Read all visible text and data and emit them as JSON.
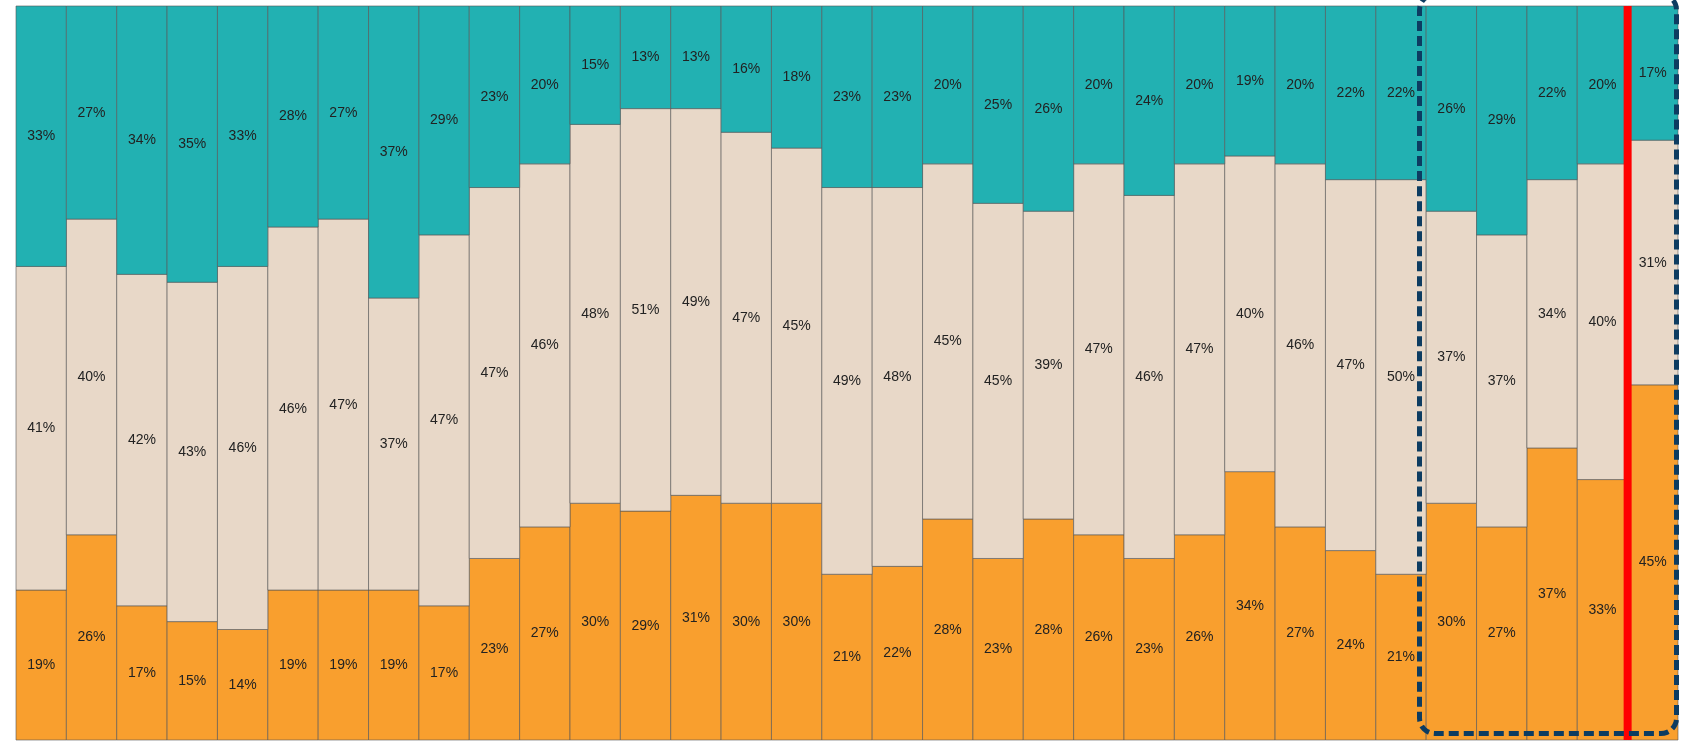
{
  "chart_data": {
    "type": "bar",
    "stacked": true,
    "categories": [
      null,
      null,
      null,
      null,
      null,
      null,
      null,
      null,
      null,
      null,
      null,
      null,
      null,
      null,
      null,
      null,
      null,
      null,
      null,
      null,
      null,
      null,
      null,
      null,
      null,
      null,
      null,
      null,
      null,
      null,
      null,
      null,
      null
    ],
    "series": [
      {
        "color": "#f99f2e",
        "values": [
          19,
          26,
          17,
          15,
          14,
          19,
          19,
          19,
          17,
          23,
          27,
          30,
          29,
          31,
          30,
          30,
          21,
          22,
          28,
          23,
          28,
          26,
          23,
          26,
          34,
          27,
          24,
          21,
          30,
          27,
          37,
          33,
          45
        ],
        "value_labels": [
          "19%",
          "26%",
          "17%",
          "15%",
          "14%",
          "19%",
          "19%",
          "19%",
          "17%",
          "23%",
          "27%",
          "30%",
          "29%",
          "31%",
          "30%",
          "30%",
          "21%",
          "22%",
          "28%",
          "23%",
          "28%",
          "26%",
          "23%",
          "26%",
          "34%",
          "27%",
          "24%",
          "21%",
          "30%",
          "27%",
          "37%",
          "33%",
          "45%"
        ]
      },
      {
        "color": "#e8d8c8",
        "values": [
          41,
          40,
          42,
          43,
          46,
          46,
          47,
          37,
          47,
          47,
          46,
          48,
          51,
          49,
          47,
          45,
          49,
          48,
          45,
          45,
          39,
          47,
          46,
          47,
          40,
          46,
          47,
          50,
          37,
          37,
          34,
          40,
          31
        ],
        "value_labels": [
          "41%",
          "40%",
          "42%",
          "43%",
          "46%",
          "46%",
          "47%",
          "37%",
          "47%",
          "47%",
          "46%",
          "48%",
          "51%",
          "49%",
          "47%",
          "45%",
          "49%",
          "48%",
          "45%",
          "45%",
          "39%",
          "47%",
          "46%",
          "47%",
          "40%",
          "46%",
          "47%",
          "50%",
          "37%",
          "37%",
          "34%",
          "40%",
          "31%"
        ]
      },
      {
        "color": "#22b1b2",
        "values": [
          33,
          27,
          34,
          35,
          33,
          28,
          27,
          37,
          29,
          23,
          20,
          15,
          13,
          13,
          16,
          18,
          23,
          23,
          20,
          25,
          26,
          20,
          24,
          20,
          19,
          20,
          22,
          22,
          26,
          29,
          22,
          20,
          17
        ],
        "value_labels": [
          "33%",
          "27%",
          "34%",
          "35%",
          "33%",
          "28%",
          "27%",
          "37%",
          "29%",
          "23%",
          "20%",
          "15%",
          "13%",
          "13%",
          "16%",
          "18%",
          "23%",
          "23%",
          "20%",
          "25%",
          "26%",
          "20%",
          "24%",
          "20%",
          "19%",
          "20%",
          "22%",
          "22%",
          "26%",
          "29%",
          "22%",
          "20%",
          "17%"
        ]
      }
    ]
  }
}
